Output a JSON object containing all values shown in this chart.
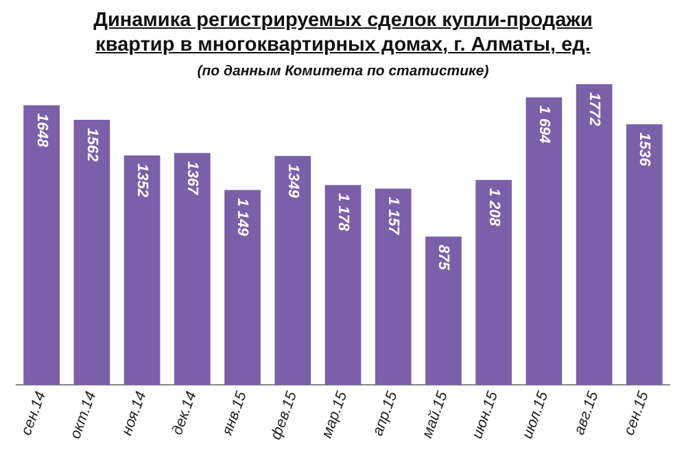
{
  "chart_data": {
    "type": "bar",
    "title": "Динамика регистрируемых сделок купли-продажи квартир в многоквартирных домах, г. Алматы, ед.",
    "subtitle": "(по данным Комитета по статистике)",
    "categories": [
      "сен.14",
      "окт.14",
      "ноя.14",
      "дек.14",
      "янв.15",
      "фев.15",
      "мар.15",
      "апр.15",
      "май.15",
      "июн.15",
      "июл.15",
      "авг.15",
      "сен.15"
    ],
    "values": [
      1648,
      1562,
      1352,
      1367,
      1149,
      1349,
      1178,
      1157,
      875,
      1208,
      1694,
      1772,
      1536
    ],
    "value_labels": [
      "1648",
      "1562",
      "1352",
      "1367",
      "1 149",
      "1349",
      "1 178",
      "1 157",
      "875",
      "1 208",
      "1 694",
      "1772",
      "1536"
    ],
    "color": "#7b5fa8",
    "grid": false,
    "legend": false
  }
}
